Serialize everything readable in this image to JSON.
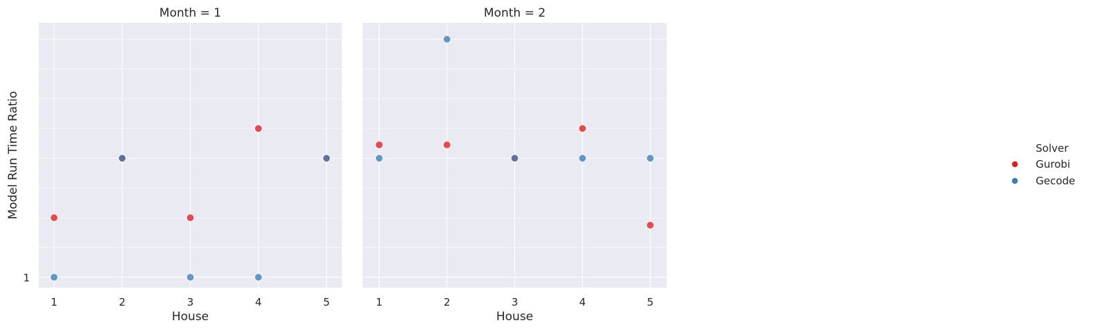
{
  "chart_data": {
    "type": "scatter",
    "facet_variable": "Month",
    "xlabel": "House",
    "ylabel": "Model Run Time Ratio",
    "x_ticks": [
      1,
      2,
      3,
      4,
      5
    ],
    "y_tick_labels": [
      {
        "value": 1,
        "label": "1"
      }
    ],
    "ylim": [
      0.65,
      9.55
    ],
    "grid": true,
    "legend": {
      "title": "Solver",
      "placement": "center-right",
      "entries": [
        {
          "name": "Gurobi",
          "color": "#e41a1c"
        },
        {
          "name": "Gecode",
          "color": "#377eb8"
        }
      ]
    },
    "facets": [
      {
        "title": "Month = 1",
        "series": [
          {
            "name": "Gurobi",
            "color": "#e41a1c",
            "points": [
              [
                1,
                3
              ],
              [
                2,
                5
              ],
              [
                3,
                3
              ],
              [
                4,
                6
              ],
              [
                5,
                5
              ]
            ]
          },
          {
            "name": "Gecode",
            "color": "#377eb8",
            "points": [
              [
                1,
                1
              ],
              [
                2,
                5
              ],
              [
                3,
                1
              ],
              [
                4,
                1
              ],
              [
                5,
                5
              ]
            ]
          }
        ]
      },
      {
        "title": "Month = 2",
        "series": [
          {
            "name": "Gurobi",
            "color": "#e41a1c",
            "points": [
              [
                1,
                5.45
              ],
              [
                2,
                5.45
              ],
              [
                3,
                5
              ],
              [
                4,
                6
              ],
              [
                5,
                2.75
              ]
            ]
          },
          {
            "name": "Gecode",
            "color": "#377eb8",
            "points": [
              [
                1,
                5
              ],
              [
                2,
                9
              ],
              [
                3,
                5
              ],
              [
                4,
                5
              ],
              [
                5,
                5
              ]
            ]
          }
        ]
      }
    ]
  }
}
